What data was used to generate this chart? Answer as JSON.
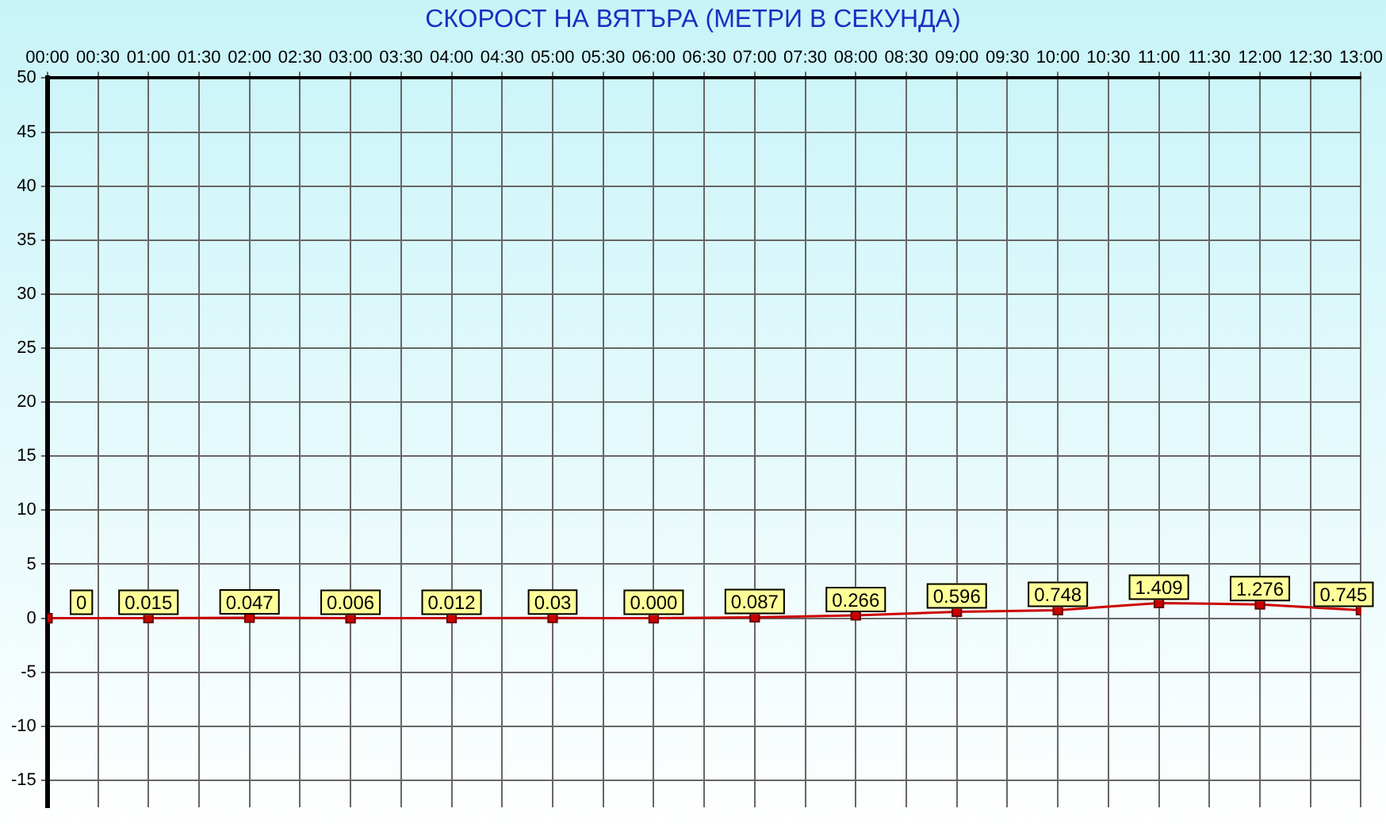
{
  "chart_data": {
    "type": "line",
    "title": "СКОРОСТ НА ВЯТЪРА (МЕТРИ В СЕКУНДА)",
    "x": [
      0,
      1,
      2,
      3,
      4,
      5,
      6,
      7,
      8,
      9,
      10,
      11,
      12,
      13
    ],
    "series": [
      {
        "color": "#cc0000",
        "values": [
          0,
          0.015,
          0.047,
          0.006,
          0.012,
          0.03,
          0.0,
          0.087,
          0.266,
          0.596,
          0.748,
          1.409,
          1.276,
          0.745
        ],
        "value_labels": [
          "0",
          "0.015",
          "0.047",
          "0.006",
          "0.012",
          "0.03",
          "0.000",
          "0.087",
          "0.266",
          "0.596",
          "0.748",
          "1.409",
          "1.276",
          "0.745"
        ]
      }
    ],
    "xlim": [
      0,
      13
    ],
    "xticks": [
      {
        "value": 0,
        "label": "00:00"
      },
      {
        "value": 0.5,
        "label": "00:30"
      },
      {
        "value": 1,
        "label": "01:00"
      },
      {
        "value": 1.5,
        "label": "01:30"
      },
      {
        "value": 2,
        "label": "02:00"
      },
      {
        "value": 2.5,
        "label": "02:30"
      },
      {
        "value": 3,
        "label": "03:00"
      },
      {
        "value": 3.5,
        "label": "03:30"
      },
      {
        "value": 4,
        "label": "04:00"
      },
      {
        "value": 4.5,
        "label": "04:30"
      },
      {
        "value": 5,
        "label": "05:00"
      },
      {
        "value": 5.5,
        "label": "05:30"
      },
      {
        "value": 6,
        "label": "06:00"
      },
      {
        "value": 6.5,
        "label": "06:30"
      },
      {
        "value": 7,
        "label": "07:00"
      },
      {
        "value": 7.5,
        "label": "07:30"
      },
      {
        "value": 8,
        "label": "08:00"
      },
      {
        "value": 8.5,
        "label": "08:30"
      },
      {
        "value": 9,
        "label": "09:00"
      },
      {
        "value": 9.5,
        "label": "09:30"
      },
      {
        "value": 10,
        "label": "10:00"
      },
      {
        "value": 10.5,
        "label": "10:30"
      },
      {
        "value": 11,
        "label": "11:00"
      },
      {
        "value": 11.5,
        "label": "11:30"
      },
      {
        "value": 12,
        "label": "12:00"
      },
      {
        "value": 12.5,
        "label": "12:30"
      },
      {
        "value": 13,
        "label": "13:00"
      }
    ],
    "ylim": [
      -17.5,
      50
    ],
    "yticks": [
      -15,
      -10,
      -5,
      0,
      5,
      10,
      15,
      20,
      25,
      30,
      35,
      40,
      45,
      50
    ],
    "grid": true,
    "marker": "square",
    "line_style": "solid",
    "legend": false
  }
}
